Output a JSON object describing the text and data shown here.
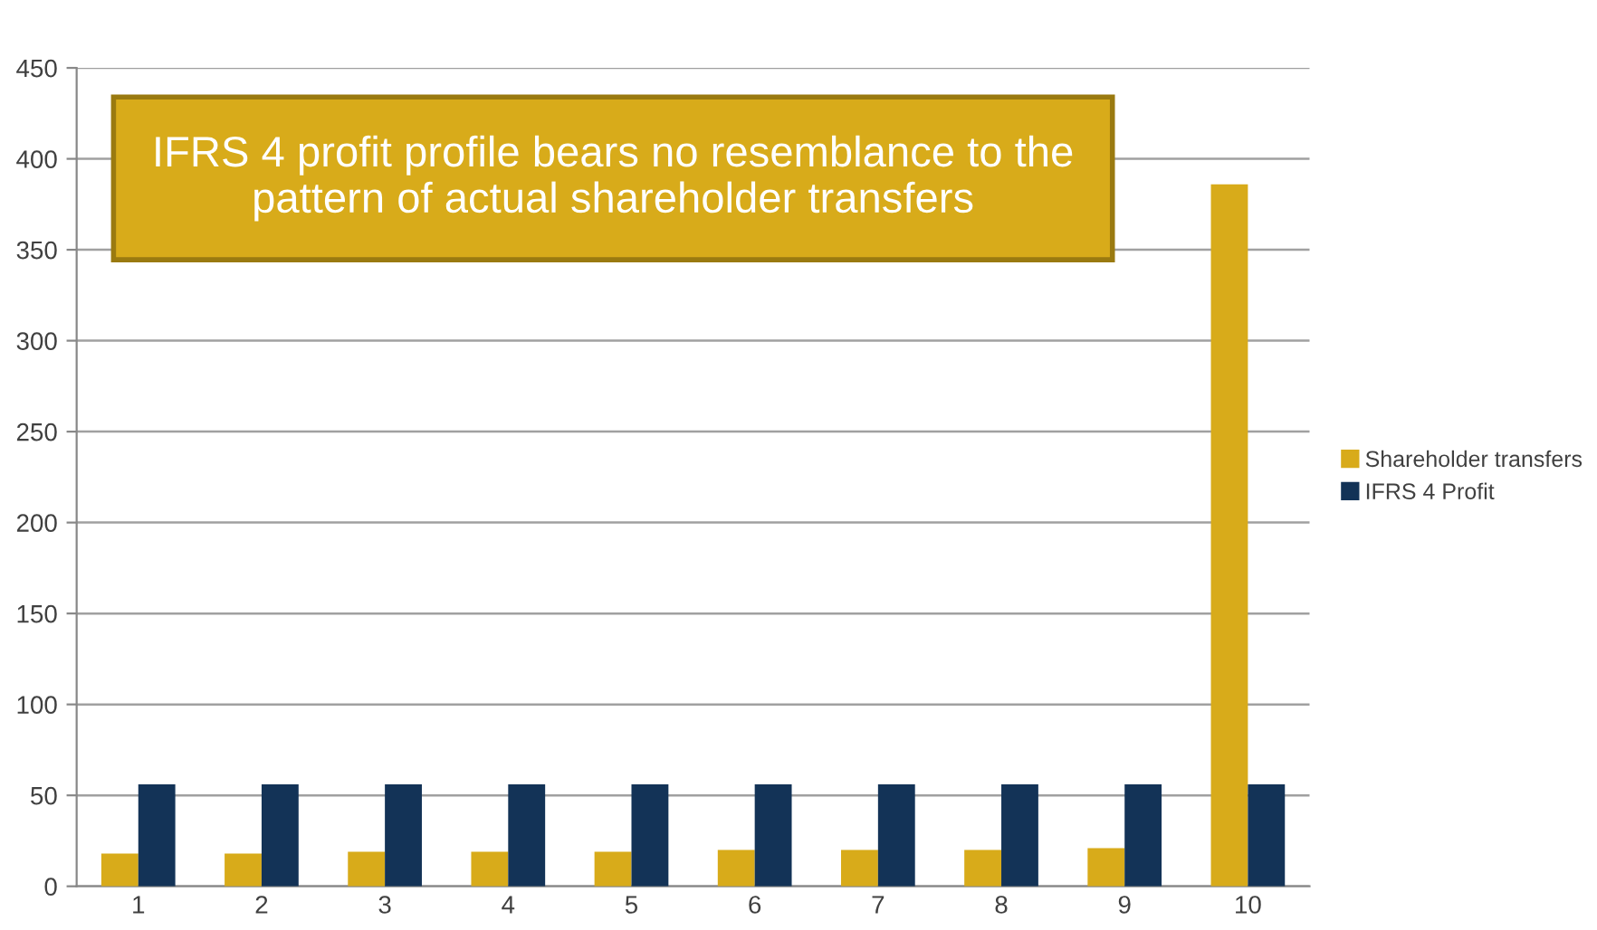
{
  "chart_data": {
    "type": "bar",
    "categories": [
      "1",
      "2",
      "3",
      "4",
      "5",
      "6",
      "7",
      "8",
      "9",
      "10"
    ],
    "series": [
      {
        "name": "Shareholder transfers",
        "color": "#d8ab1a",
        "values": [
          18,
          18,
          19,
          19,
          19,
          20,
          20,
          20,
          21,
          386
        ]
      },
      {
        "name": "IFRS 4 Profit",
        "color": "#133357",
        "values": [
          56,
          56,
          56,
          56,
          56,
          56,
          56,
          56,
          56,
          56
        ]
      }
    ],
    "ylim": [
      0,
      450
    ],
    "yticks": [
      0,
      50,
      100,
      150,
      200,
      250,
      300,
      350,
      400,
      450
    ],
    "grid": "y",
    "legend": "right",
    "annotations": [
      "IFRS 4 profit profile bears no resemblance to the pattern of actual shareholder transfers"
    ]
  }
}
